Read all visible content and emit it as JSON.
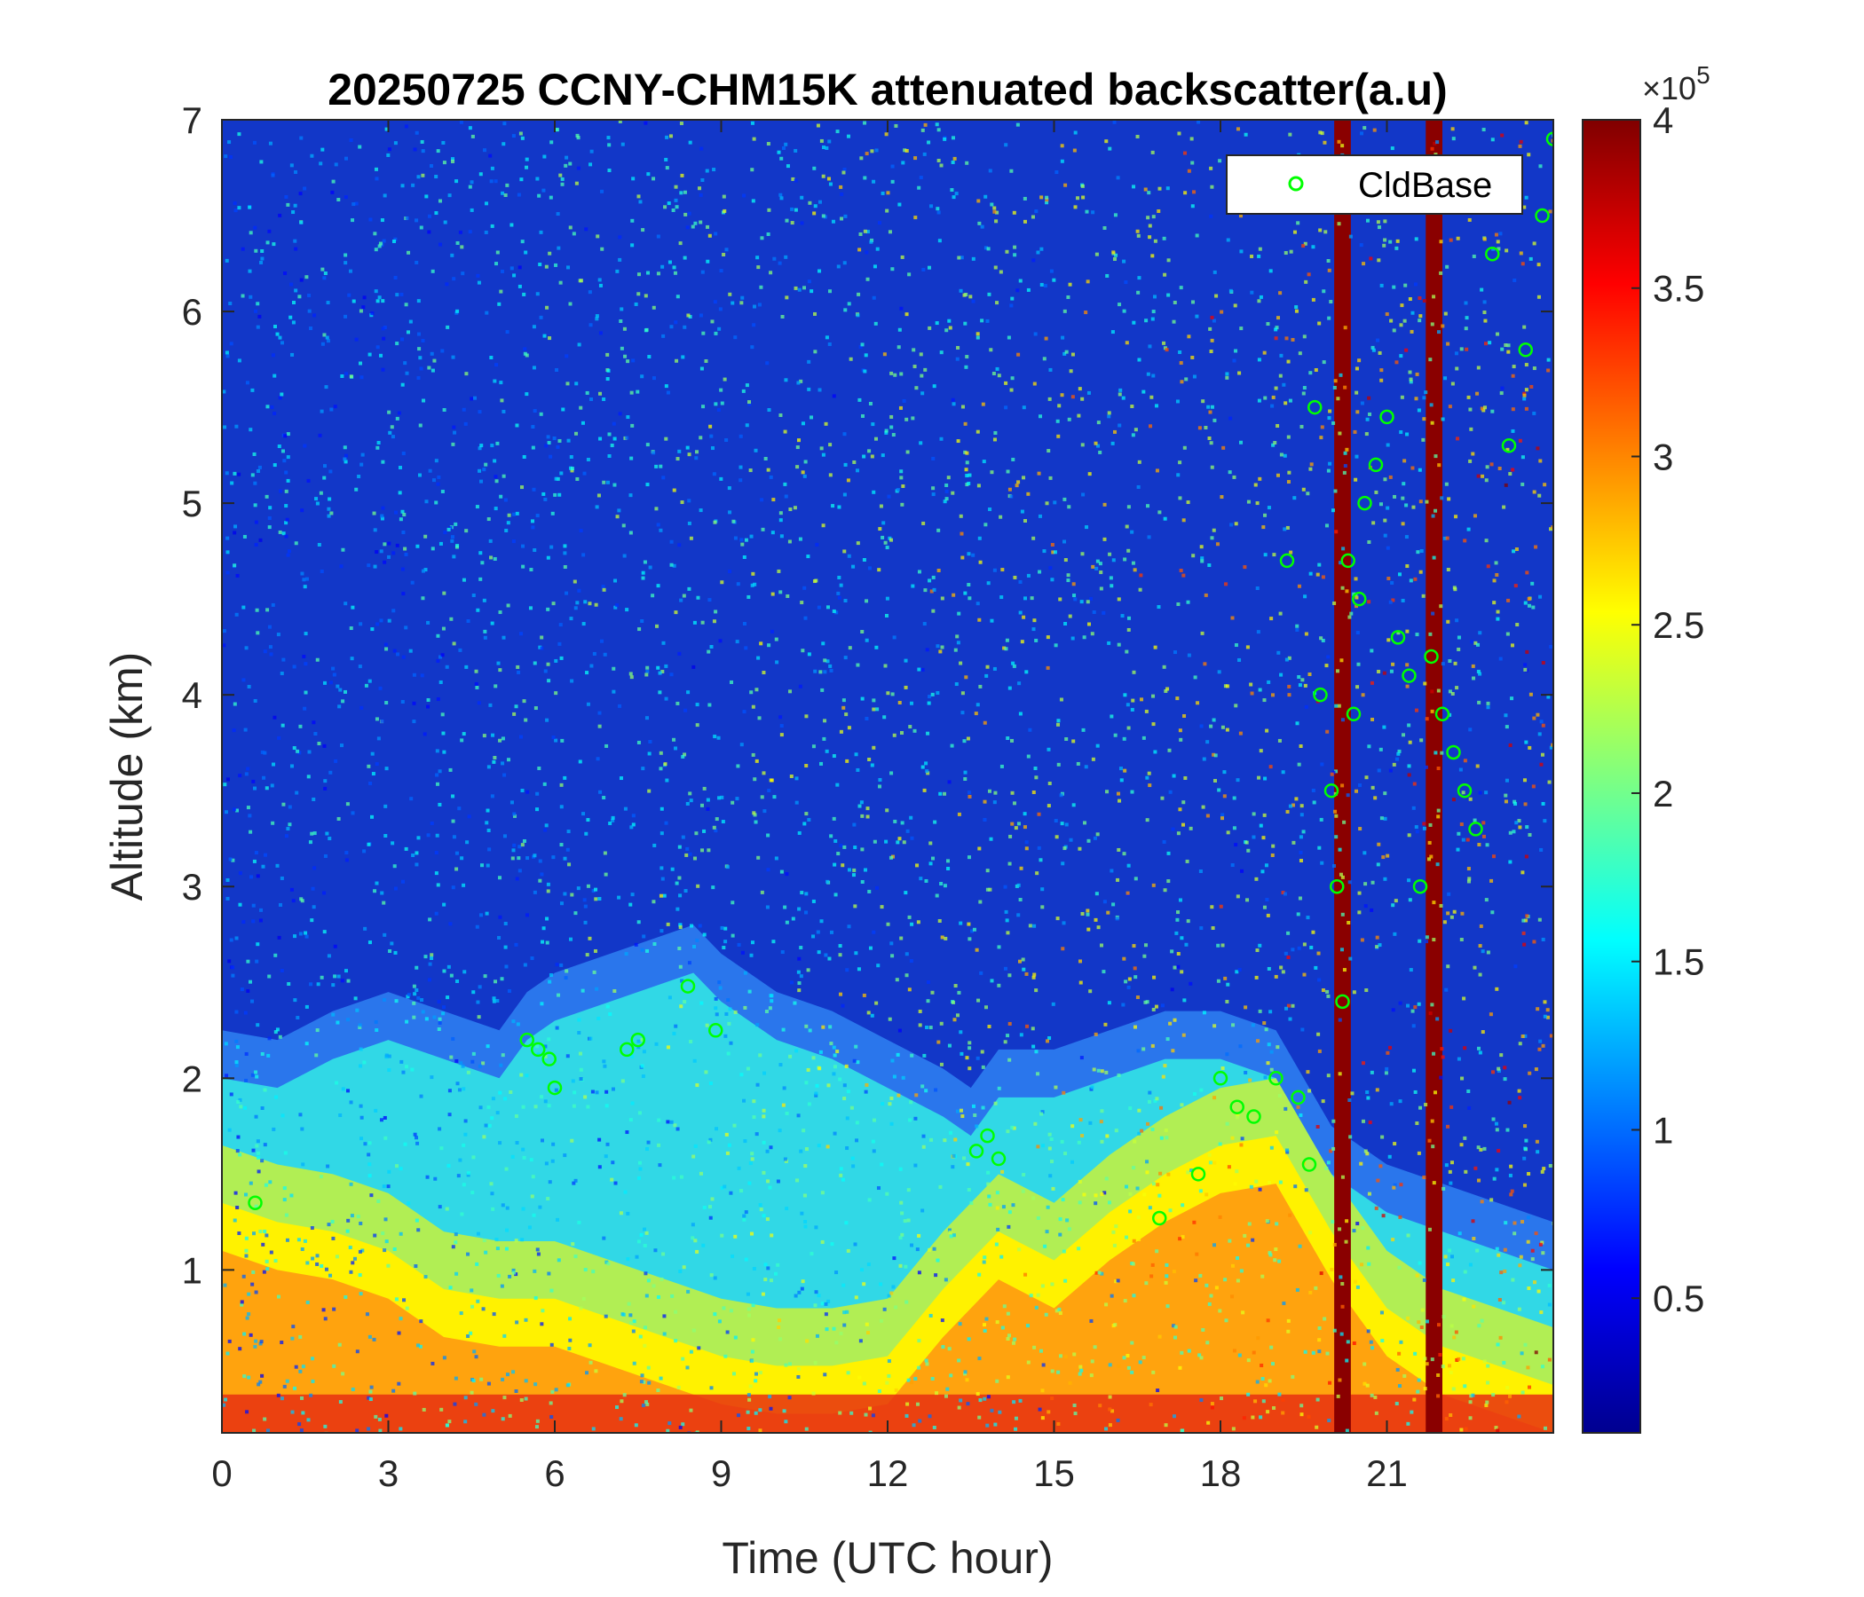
{
  "chart_data": {
    "type": "heatmap",
    "title": "20250725 CCNY-CHM15K attenuated backscatter(a.u)",
    "xlabel": "Time (UTC hour)",
    "ylabel": "Altitude (km)",
    "xlim": [
      0,
      24
    ],
    "ylim": [
      0.15,
      7
    ],
    "xticks": [
      0,
      3,
      6,
      9,
      12,
      15,
      18,
      21
    ],
    "xtick_labels": [
      "0",
      "3",
      "6",
      "9",
      "12",
      "15",
      "18",
      "21"
    ],
    "yticks": [
      1,
      2,
      3,
      4,
      5,
      6,
      7
    ],
    "ytick_labels": [
      "1",
      "2",
      "3",
      "4",
      "5",
      "6",
      "7"
    ],
    "colorbar": {
      "colormap": "jet",
      "clim": [
        10000,
        400000
      ],
      "ticks": [
        50000,
        100000,
        150000,
        200000,
        250000,
        300000,
        350000,
        400000
      ],
      "tick_labels": [
        "0.5",
        "1",
        "1.5",
        "2",
        "2.5",
        "3",
        "3.5",
        "4"
      ],
      "exponent_label": "×10",
      "exponent_power": "5"
    },
    "legend": {
      "placement": "top-right",
      "entries": [
        {
          "name": "CldBase",
          "marker": "circle",
          "color": "#00ff00"
        }
      ]
    },
    "boundary_layer_top_km": {
      "x": [
        0,
        1,
        2,
        3,
        4,
        5,
        5.5,
        6,
        7,
        8,
        8.5,
        9,
        10,
        11,
        12,
        13,
        13.5,
        14,
        15,
        16,
        17,
        18,
        19,
        20,
        21,
        22,
        23,
        24
      ],
      "y": [
        2.0,
        1.95,
        2.1,
        2.2,
        2.1,
        2.0,
        2.2,
        2.3,
        2.4,
        2.5,
        2.55,
        2.4,
        2.2,
        2.1,
        1.95,
        1.8,
        1.7,
        1.9,
        1.9,
        2.0,
        2.1,
        2.1,
        2.0,
        1.5,
        1.3,
        1.2,
        1.1,
        1.0
      ]
    },
    "aerosol_layer_top_km": {
      "x": [
        0,
        1,
        2,
        3,
        4,
        5,
        6,
        7,
        8,
        9,
        10,
        11,
        12,
        13,
        14,
        15,
        16,
        17,
        18,
        19,
        20,
        21,
        22,
        23,
        24
      ],
      "y": [
        1.35,
        1.25,
        1.2,
        1.1,
        0.9,
        0.85,
        0.85,
        0.75,
        0.65,
        0.55,
        0.5,
        0.5,
        0.55,
        0.9,
        1.2,
        1.05,
        1.3,
        1.5,
        1.65,
        1.7,
        1.2,
        0.8,
        0.6,
        0.5,
        0.4
      ]
    },
    "cloud_base_points": {
      "series": "CldBase",
      "x": [
        0.6,
        5.5,
        5.7,
        5.9,
        6.0,
        7.3,
        7.5,
        8.4,
        8.9,
        13.6,
        13.8,
        14.0,
        16.9,
        17.6,
        18.0,
        18.3,
        18.6,
        19.0,
        19.2,
        19.4,
        19.6,
        19.7,
        19.8,
        20.0,
        20.1,
        20.2,
        20.3,
        20.4,
        20.5,
        20.6,
        20.8,
        21.0,
        21.2,
        21.4,
        21.6,
        21.8,
        22.0,
        22.2,
        22.4,
        22.6,
        22.9,
        23.2,
        23.5,
        23.8,
        24.0
      ],
      "y": [
        1.35,
        2.2,
        2.15,
        2.1,
        1.95,
        2.15,
        2.2,
        2.48,
        2.25,
        1.62,
        1.7,
        1.58,
        1.27,
        1.5,
        2.0,
        1.85,
        1.8,
        2.0,
        4.7,
        1.9,
        1.55,
        5.5,
        4.0,
        3.5,
        3.0,
        2.4,
        4.7,
        3.9,
        4.5,
        5.0,
        5.2,
        5.45,
        4.3,
        4.1,
        3.0,
        4.2,
        3.9,
        3.7,
        3.5,
        3.3,
        6.3,
        5.3,
        5.8,
        6.5,
        6.9
      ]
    }
  }
}
